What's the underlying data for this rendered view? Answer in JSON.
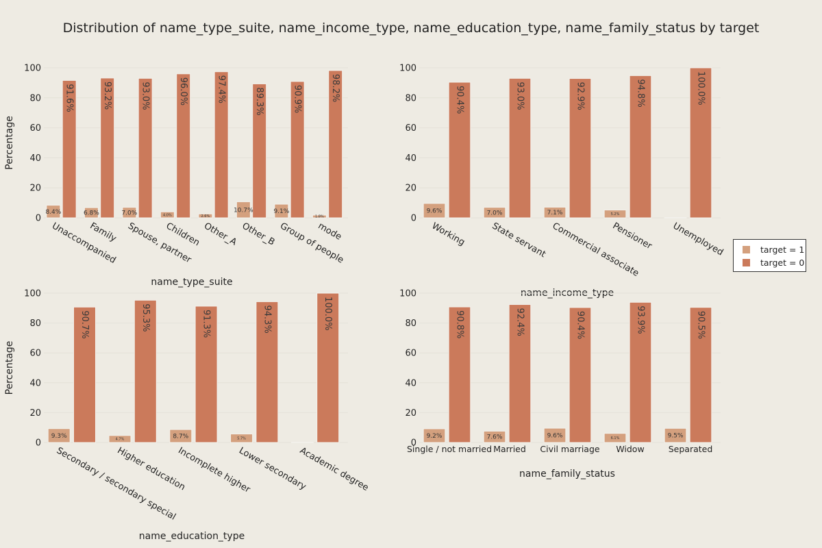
{
  "title": "Distribution of name_type_suite, name_income_type, name_education_type, name_family_status by target",
  "legend": [
    {
      "label": "target = 1",
      "color": "#d4a07e"
    },
    {
      "label": "target = 0",
      "color": "#cb7a5b"
    }
  ],
  "chart_data": [
    {
      "type": "bar",
      "xlabel": "name_type_suite",
      "ylabel": "Percentage",
      "ylim": [
        0,
        100
      ],
      "yticks": [
        0,
        20,
        40,
        60,
        80,
        100
      ],
      "categories": [
        "Unaccompanied",
        "Family",
        "Spouse, partner",
        "Children",
        "Other_A",
        "Other_B",
        "Group of people",
        "mode"
      ],
      "series": [
        {
          "name": "target = 1",
          "values": [
            8.4,
            6.8,
            7.0,
            4.0,
            2.6,
            10.7,
            9.1,
            1.8
          ],
          "labels": [
            "8.4%",
            "6.8%",
            "7.0%",
            "4.0%",
            "2.6%",
            "10.7%",
            "9.1%",
            "1.8%"
          ]
        },
        {
          "name": "target = 0",
          "values": [
            91.6,
            93.2,
            93.0,
            96.0,
            97.4,
            89.3,
            90.9,
            98.2
          ],
          "labels": [
            "91.6%",
            "93.2%",
            "93.0%",
            "96.0%",
            "97.4%",
            "89.3%",
            "90.9%",
            "98.2%"
          ]
        }
      ]
    },
    {
      "type": "bar",
      "xlabel": "name_income_type",
      "ylabel": "",
      "ylim": [
        0,
        100
      ],
      "yticks": [
        0,
        20,
        40,
        60,
        80,
        100
      ],
      "categories": [
        "Working",
        "State servant",
        "Commercial associate",
        "Pensioner",
        "Unemployed"
      ],
      "series": [
        {
          "name": "target = 1",
          "values": [
            9.6,
            7.0,
            7.1,
            5.2,
            0
          ],
          "labels": [
            "9.6%",
            "7.0%",
            "7.1%",
            "5.2%",
            ""
          ]
        },
        {
          "name": "target = 0",
          "values": [
            90.4,
            93.0,
            92.9,
            94.8,
            100.0
          ],
          "labels": [
            "90.4%",
            "93.0%",
            "92.9%",
            "94.8%",
            "100.0%"
          ]
        }
      ]
    },
    {
      "type": "bar",
      "xlabel": "name_education_type",
      "ylabel": "Percentage",
      "ylim": [
        0,
        100
      ],
      "yticks": [
        0,
        20,
        40,
        60,
        80,
        100
      ],
      "categories": [
        "Secondary / secondary special",
        "Higher education",
        "Incomplete higher",
        "Lower secondary",
        "Academic degree"
      ],
      "series": [
        {
          "name": "target = 1",
          "values": [
            9.3,
            4.7,
            8.7,
            5.7,
            0
          ],
          "labels": [
            "9.3%",
            "4.7%",
            "8.7%",
            "5.7%",
            ""
          ]
        },
        {
          "name": "target = 0",
          "values": [
            90.7,
            95.3,
            91.3,
            94.3,
            100.0
          ],
          "labels": [
            "90.7%",
            "95.3%",
            "91.3%",
            "94.3%",
            "100.0%"
          ]
        }
      ]
    },
    {
      "type": "bar",
      "xlabel": "name_family_status",
      "ylabel": "",
      "ylim": [
        0,
        100
      ],
      "yticks": [
        0,
        20,
        40,
        60,
        80,
        100
      ],
      "categories": [
        "Single / not married",
        "Married",
        "Civil marriage",
        "Widow",
        "Separated"
      ],
      "series": [
        {
          "name": "target = 1",
          "values": [
            9.2,
            7.6,
            9.6,
            6.1,
            9.5
          ],
          "labels": [
            "9.2%",
            "7.6%",
            "9.6%",
            "6.1%",
            "9.5%"
          ]
        },
        {
          "name": "target = 0",
          "values": [
            90.8,
            92.4,
            90.4,
            93.9,
            90.5
          ],
          "labels": [
            "90.8%",
            "92.4%",
            "90.4%",
            "93.9%",
            "90.5%"
          ]
        }
      ]
    }
  ]
}
